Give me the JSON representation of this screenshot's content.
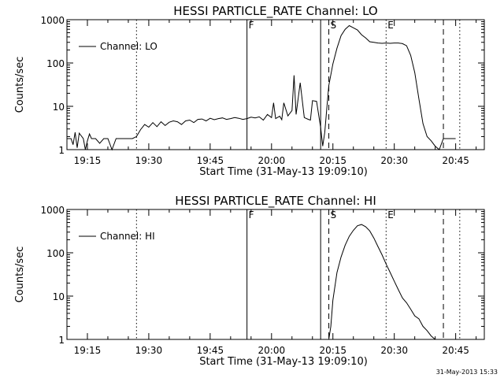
{
  "timestamp": "31-May-2013 15:33",
  "chart_data": [
    {
      "type": "line",
      "title": "HESSI PARTICLE_RATE Channel: LO",
      "xlabel": "Start Time (31-May-13 19:09:10)",
      "ylabel": "Counts/sec",
      "yscale": "log",
      "ylim": [
        1,
        1000
      ],
      "xlim_min": [
        1150,
        1252
      ],
      "x_ticks": [
        "19:15",
        "19:30",
        "19:45",
        "20:00",
        "20:15",
        "20:30",
        "20:45"
      ],
      "y_ticks": [
        "1",
        "10",
        "100",
        "1000"
      ],
      "legend": {
        "position": "top-left",
        "entries": [
          "Channel: LO"
        ]
      },
      "markers": [
        {
          "label": "F",
          "x": 1194,
          "style": "solid"
        },
        {
          "label": "",
          "x": 1212,
          "style": "solid"
        },
        {
          "label": "S",
          "x": 1214,
          "style": "dashed"
        },
        {
          "label": "E",
          "x": 1228,
          "style": "dotted"
        }
      ],
      "extra_lines": [
        {
          "x": 1167,
          "style": "dotted"
        },
        {
          "x": 1242,
          "style": "dashed"
        },
        {
          "x": 1246,
          "style": "dotted"
        }
      ],
      "series": [
        {
          "x": [
            1150,
            1151,
            1151.5,
            1152,
            1152.5,
            1153,
            1154,
            1154.5,
            1155,
            1155.5,
            1156,
            1157,
            1158,
            1159,
            1160,
            1161,
            1162,
            1163,
            1164,
            1165,
            1166,
            1167,
            1168,
            1169,
            1170,
            1171,
            1172,
            1173,
            1174,
            1175,
            1176,
            1177,
            1178,
            1179,
            1180,
            1181,
            1182,
            1183,
            1184,
            1185,
            1186,
            1187,
            1188,
            1189,
            1190,
            1191,
            1192,
            1193,
            1194,
            1195,
            1196,
            1197,
            1198,
            1199,
            1200,
            1200.5,
            1201,
            1202,
            1202.5,
            1203,
            1204,
            1205,
            1205.5,
            1206,
            1207,
            1208,
            1209,
            1209.5,
            1210,
            1211,
            1212,
            1212.5,
            1213,
            1213.5,
            1214,
            1215,
            1216,
            1217,
            1218,
            1219,
            1220,
            1221,
            1222,
            1223,
            1224,
            1225,
            1226,
            1227,
            1228,
            1229,
            1230,
            1231,
            1232,
            1233,
            1234,
            1235,
            1236,
            1237,
            1238,
            1239,
            1240,
            1241,
            1242,
            1243,
            1244,
            1245
          ],
          "y": [
            1.8,
            1.8,
            1.3,
            2.5,
            1.1,
            2.4,
            1.8,
            1.0,
            1.6,
            2.3,
            1.8,
            1.8,
            1.4,
            1.8,
            1.8,
            1.0,
            1.8,
            1.8,
            1.8,
            1.8,
            1.8,
            2.0,
            2.9,
            3.8,
            3.3,
            4.2,
            3.4,
            4.4,
            3.6,
            4.3,
            4.6,
            4.4,
            3.8,
            4.6,
            4.8,
            4.2,
            5.0,
            5.1,
            4.6,
            5.3,
            4.9,
            5.2,
            5.4,
            5.0,
            5.2,
            5.5,
            5.3,
            5.0,
            5.2,
            5.6,
            5.4,
            5.7,
            4.8,
            6.5,
            5.5,
            12.0,
            5.2,
            5.9,
            4.9,
            12.0,
            6.0,
            8.0,
            52.0,
            6.5,
            35.0,
            5.5,
            5.0,
            4.8,
            13.5,
            13.0,
            3.2,
            1.2,
            2.5,
            9.0,
            30.0,
            95.0,
            220.0,
            430.0,
            600.0,
            730.0,
            650.0,
            580.0,
            450.0,
            380.0,
            310.0,
            300.0,
            290.0,
            285.0,
            290.0,
            285.0,
            290.0,
            290.0,
            280.0,
            250.0,
            150.0,
            60.0,
            15.0,
            4.0,
            2.0,
            1.6,
            1.2,
            1.0,
            1.8,
            1.8,
            1.8,
            1.8
          ]
        }
      ]
    },
    {
      "type": "line",
      "title": "HESSI PARTICLE_RATE Channel: HI",
      "xlabel": "Start Time (31-May-13 19:09:10)",
      "ylabel": "Counts/sec",
      "yscale": "log",
      "ylim": [
        1,
        1000
      ],
      "xlim_min": [
        1150,
        1252
      ],
      "x_ticks": [
        "19:15",
        "19:30",
        "19:45",
        "20:00",
        "20:15",
        "20:30",
        "20:45"
      ],
      "y_ticks": [
        "1",
        "10",
        "100",
        "1000"
      ],
      "legend": {
        "position": "top-left",
        "entries": [
          "Channel: HI"
        ]
      },
      "markers": [
        {
          "label": "F",
          "x": 1194,
          "style": "solid"
        },
        {
          "label": "",
          "x": 1212,
          "style": "solid"
        },
        {
          "label": "S",
          "x": 1214,
          "style": "dashed"
        },
        {
          "label": "E",
          "x": 1228,
          "style": "dotted"
        }
      ],
      "extra_lines": [
        {
          "x": 1167,
          "style": "dotted"
        },
        {
          "x": 1242,
          "style": "dashed"
        },
        {
          "x": 1246,
          "style": "dotted"
        }
      ],
      "series": [
        {
          "x": [
            1214,
            1214.5,
            1215,
            1216,
            1217,
            1218,
            1219,
            1220,
            1221,
            1222,
            1223,
            1224,
            1225,
            1226,
            1227,
            1228,
            1229,
            1230,
            1231,
            1232,
            1233,
            1234,
            1235,
            1236,
            1237,
            1238,
            1239,
            1240
          ],
          "y": [
            1.0,
            2.0,
            8.0,
            35.0,
            80.0,
            150.0,
            240.0,
            330.0,
            420.0,
            450.0,
            400.0,
            320.0,
            220.0,
            140.0,
            90.0,
            55.0,
            35.0,
            22.0,
            14.0,
            9.0,
            7.0,
            5.0,
            3.5,
            3.0,
            2.0,
            1.6,
            1.2,
            1.0
          ]
        }
      ]
    }
  ]
}
